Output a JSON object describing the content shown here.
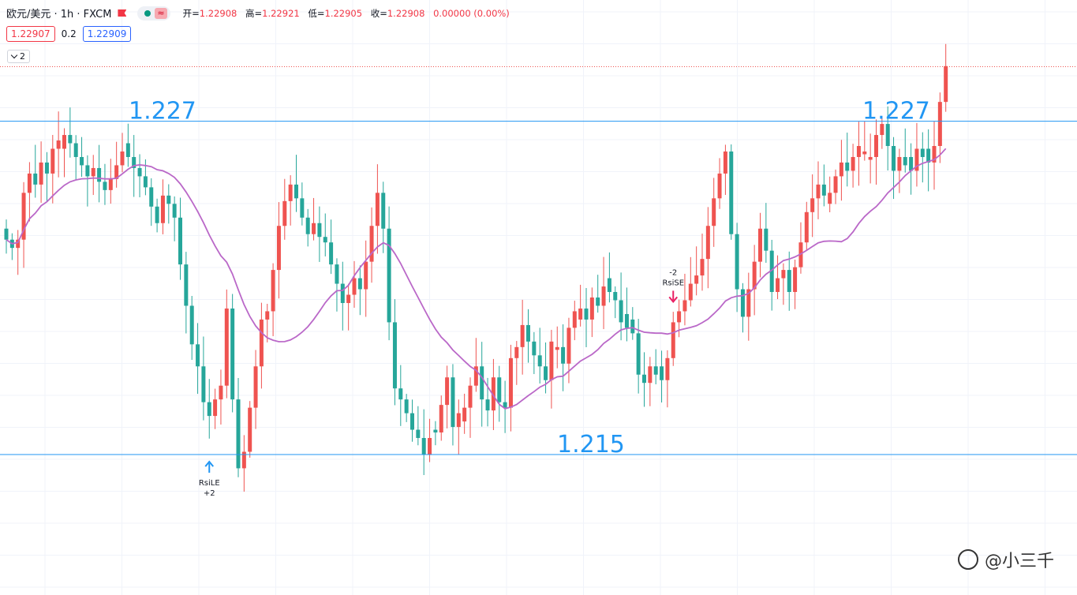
{
  "header": {
    "symbol": "欧元/美元 · 1h · FXCM",
    "ohlc": [
      {
        "label": "开=",
        "value": "1.22908"
      },
      {
        "label": "高=",
        "value": "1.22921"
      },
      {
        "label": "低=",
        "value": "1.22905"
      },
      {
        "label": "收=",
        "value": "1.22908"
      },
      {
        "label": "",
        "value": "0.00000 (0.00%)"
      }
    ],
    "pill_icon": "≈"
  },
  "prices": {
    "bid": "1.22907",
    "spread": "0.2",
    "ask": "1.22909"
  },
  "collapse_label": "2",
  "watermark": "@小三千",
  "chart_data": {
    "type": "candlestick",
    "ylim": [
      1.2099,
      1.2315
    ],
    "horizontal_lines": [
      {
        "value": 1.2271,
        "label": "1.227",
        "label_positions": [
          "left",
          "right"
        ]
      },
      {
        "value": 1.215,
        "label": "1.215",
        "label_positions": [
          "center"
        ]
      }
    ],
    "last_price_line": 1.22908,
    "colors": {
      "up": "#ef5350",
      "down": "#26a69a",
      "ma": "#ba68c8",
      "hline": "#2196f3",
      "signal_up": "#2196f3",
      "signal_down": "#e91e63"
    },
    "closes": [
      1.2228,
      1.2225,
      1.2228,
      1.2245,
      1.2252,
      1.2248,
      1.2256,
      1.2252,
      1.2261,
      1.2264,
      1.2266,
      1.2263,
      1.2258,
      1.2255,
      1.2251,
      1.2254,
      1.2249,
      1.2246,
      1.225,
      1.2255,
      1.226,
      1.2258,
      1.2254,
      1.2251,
      1.2247,
      1.224,
      1.2234,
      1.2244,
      1.2241,
      1.2236,
      1.2219,
      1.2204,
      1.219,
      1.2182,
      1.2169,
      1.2164,
      1.217,
      1.2175,
      1.2203,
      1.217,
      1.2145,
      1.2151,
      1.2167,
      1.2182,
      1.2199,
      1.2202,
      1.2217,
      1.2233,
      1.2242,
      1.2248,
      1.2243,
      1.2236,
      1.223,
      1.2234,
      1.2229,
      1.2227,
      1.2219,
      1.2212,
      1.2205,
      1.2208,
      1.2214,
      1.221,
      1.222,
      1.2233,
      1.2245,
      1.2232,
      1.2198,
      1.2174,
      1.217,
      1.2165,
      1.2159,
      1.2156,
      1.215,
      1.2156,
      1.2158,
      1.2168,
      1.2178,
      1.216,
      1.2165,
      1.2167,
      1.2175,
      1.2182,
      1.217,
      1.2166,
      1.2178,
      1.2169,
      1.2167,
      1.2185,
      1.2189,
      1.2197,
      1.2191,
      1.2186,
      1.2182,
      1.2177,
      1.2191,
      1.2189,
      1.2183,
      1.2196,
      1.2202,
      1.2203,
      1.2199,
      1.2207,
      1.2204,
      1.2211,
      1.2209,
      1.2206,
      1.2198,
      1.2196,
      1.2194,
      1.2179,
      1.2176,
      1.2182,
      1.2179,
      1.2177,
      1.2185,
      1.2198,
      1.2202,
      1.2206,
      1.2212,
      1.2215,
      1.2221,
      1.2233,
      1.2243,
      1.2252,
      1.226,
      1.223,
      1.221,
      1.22,
      1.221,
      1.222,
      1.2232,
      1.2224,
      1.2209,
      1.2214,
      1.2217,
      1.2209,
      1.2218,
      1.2227,
      1.2238,
      1.2243,
      1.2248,
      1.2244,
      1.2245,
      1.2251,
      1.2256,
      1.2253,
      1.2258,
      1.2262,
      1.226,
      1.2258,
      1.2266,
      1.227,
      1.2262,
      1.2253,
      1.2258,
      1.2255,
      1.2253,
      1.2261,
      1.2258,
      1.2256,
      1.2262,
      1.2278,
      1.2291
    ],
    "moving_average": {
      "period": 20
    },
    "signals": [
      {
        "type": "long",
        "text": "RsiLE",
        "qty": "+2",
        "bar": 35
      },
      {
        "type": "short",
        "text": "RsiSE",
        "qty": "-2",
        "bar": 115
      }
    ]
  }
}
